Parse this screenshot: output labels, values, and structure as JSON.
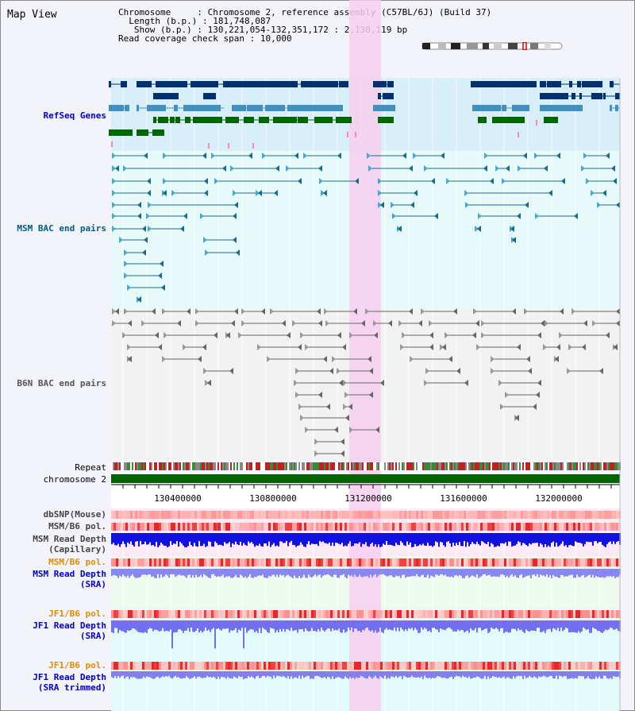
{
  "header": {
    "title": "Map View",
    "chromosome_key": "Chromosome    ",
    "chromosome_value": "Chromosome 2, reference assembly (C57BL/6J) (Build 37)",
    "length_key": "Length (b.p.)",
    "length_value": "181,748,087",
    "show_key": "Show (b.p.)",
    "show_value": "130,221,054-132,351,172 : 2,130,119 bp",
    "coverage_key": "Read coverage check span",
    "coverage_value": "10,000"
  },
  "tracks": {
    "refseq": "RefSeq Genes",
    "msm_bac": "MSM BAC end pairs",
    "b6n_bac": "B6N BAC end pairs",
    "repeat": "Repeat",
    "chromosome": "chromosome 2",
    "dbsnp": "dbSNP(Mouse)",
    "msm_b6_pol_1": "MSM/B6 pol.",
    "msm_read_depth_cap_1": "MSM Read Depth",
    "msm_read_depth_cap_2": "(Capillary)",
    "msm_b6_pol_2": "MSM/B6 pol.",
    "msm_read_depth_sra_1": "MSM Read Depth",
    "msm_read_depth_sra_2": "(SRA)",
    "jf1_b6_pol_1": "JF1/B6 pol.",
    "jf1_read_depth_sra_1": "JF1 Read Depth",
    "jf1_read_depth_sra_2": "(SRA)",
    "jf1_b6_pol_2": "JF1/B6 pol.",
    "jf1_read_depth_trim_1": "JF1 Read Depth",
    "jf1_read_depth_trim_2": "(SRA trimmed)"
  },
  "axis": {
    "ticks": [
      "130400000",
      "130800000",
      "131200000",
      "131600000",
      "132000000"
    ]
  },
  "colors": {
    "refseq_label": "#0000cc",
    "msm_label": "#006080",
    "b6n_label": "#444444",
    "pol_label": "#e08c00",
    "depth_label": "#0000cc",
    "highlight": "#f7cff0",
    "chromosome_bar": "#006400"
  }
}
